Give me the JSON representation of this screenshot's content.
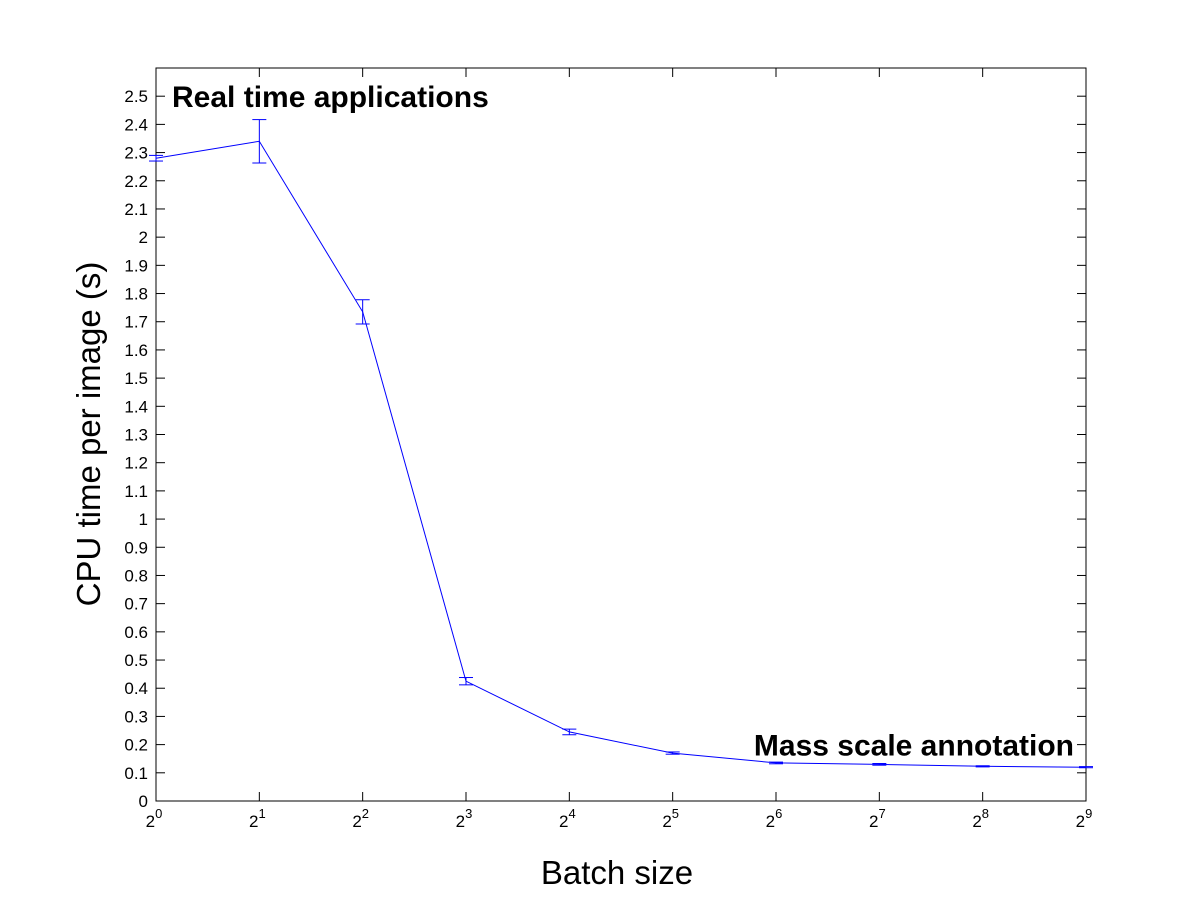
{
  "chart_data": {
    "type": "line",
    "title": "",
    "xlabel": "Batch size",
    "ylabel": "CPU time per image (s)",
    "x_scale": "log2",
    "x": [
      1,
      2,
      4,
      8,
      16,
      32,
      64,
      128,
      256,
      512
    ],
    "x_tick_labels": [
      {
        "base": "2",
        "exp": "0"
      },
      {
        "base": "2",
        "exp": "1"
      },
      {
        "base": "2",
        "exp": "2"
      },
      {
        "base": "2",
        "exp": "3"
      },
      {
        "base": "2",
        "exp": "4"
      },
      {
        "base": "2",
        "exp": "5"
      },
      {
        "base": "2",
        "exp": "6"
      },
      {
        "base": "2",
        "exp": "7"
      },
      {
        "base": "2",
        "exp": "8"
      },
      {
        "base": "2",
        "exp": "9"
      }
    ],
    "xlim": [
      1,
      512
    ],
    "ylim": [
      0,
      2.6
    ],
    "y_ticks": [
      "0",
      "0.1",
      "0.2",
      "0.3",
      "0.4",
      "0.5",
      "0.6",
      "0.7",
      "0.8",
      "0.9",
      "1",
      "1.1",
      "1.2",
      "1.3",
      "1.4",
      "1.5",
      "1.6",
      "1.7",
      "1.8",
      "1.9",
      "2",
      "2.1",
      "2.2",
      "2.3",
      "2.4",
      "2.5"
    ],
    "series": [
      {
        "color": "#0000ff",
        "values": [
          2.28,
          2.34,
          1.735,
          0.425,
          0.245,
          0.17,
          0.135,
          0.13,
          0.123,
          0.12
        ],
        "error": [
          0.01,
          0.077,
          0.043,
          0.013,
          0.01,
          0.004,
          0.003,
          0.003,
          0.002,
          0.002
        ]
      }
    ],
    "grid": false,
    "annotations": [
      {
        "text": "Real time applications",
        "x": 1,
        "y": 2.5
      },
      {
        "text": "Mass scale annotation",
        "x": 512,
        "y": 0.2
      }
    ]
  }
}
